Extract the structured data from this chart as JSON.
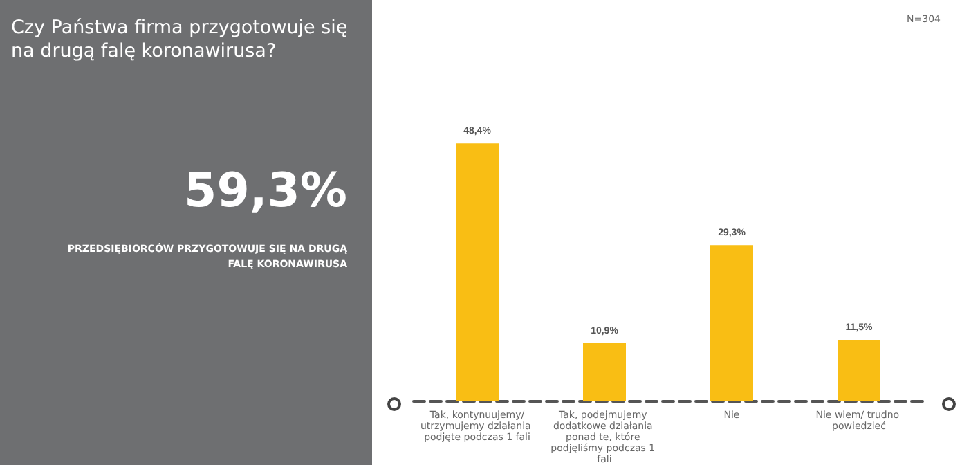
{
  "chart_data": {
    "type": "bar",
    "title": "Czy Państwa firma przygotowuje się na drugą falę koronawirusa?",
    "categories": [
      "Tak, kontynuujemy/utrzymujemy działania podjęte podczas 1 fali",
      "Tak, podejmujemy dodatkowe działania ponad te, które podjęliśmy podczas 1 fali",
      "Nie",
      "Nie wiem/ trudno powiedzieć"
    ],
    "values": [
      48.4,
      10.9,
      29.3,
      11.5
    ],
    "value_labels": [
      "48,4%",
      "10,9%",
      "29,3%",
      "11,5%"
    ],
    "color": "#f9be14",
    "annotations": [
      "59,3%",
      "PRZEDSIĘBIORCÓW PRZYGOTOWUJE SIĘ NA DRUGĄ FALĘ KORONAWIRUSA",
      "N=304"
    ],
    "grid": false
  }
}
